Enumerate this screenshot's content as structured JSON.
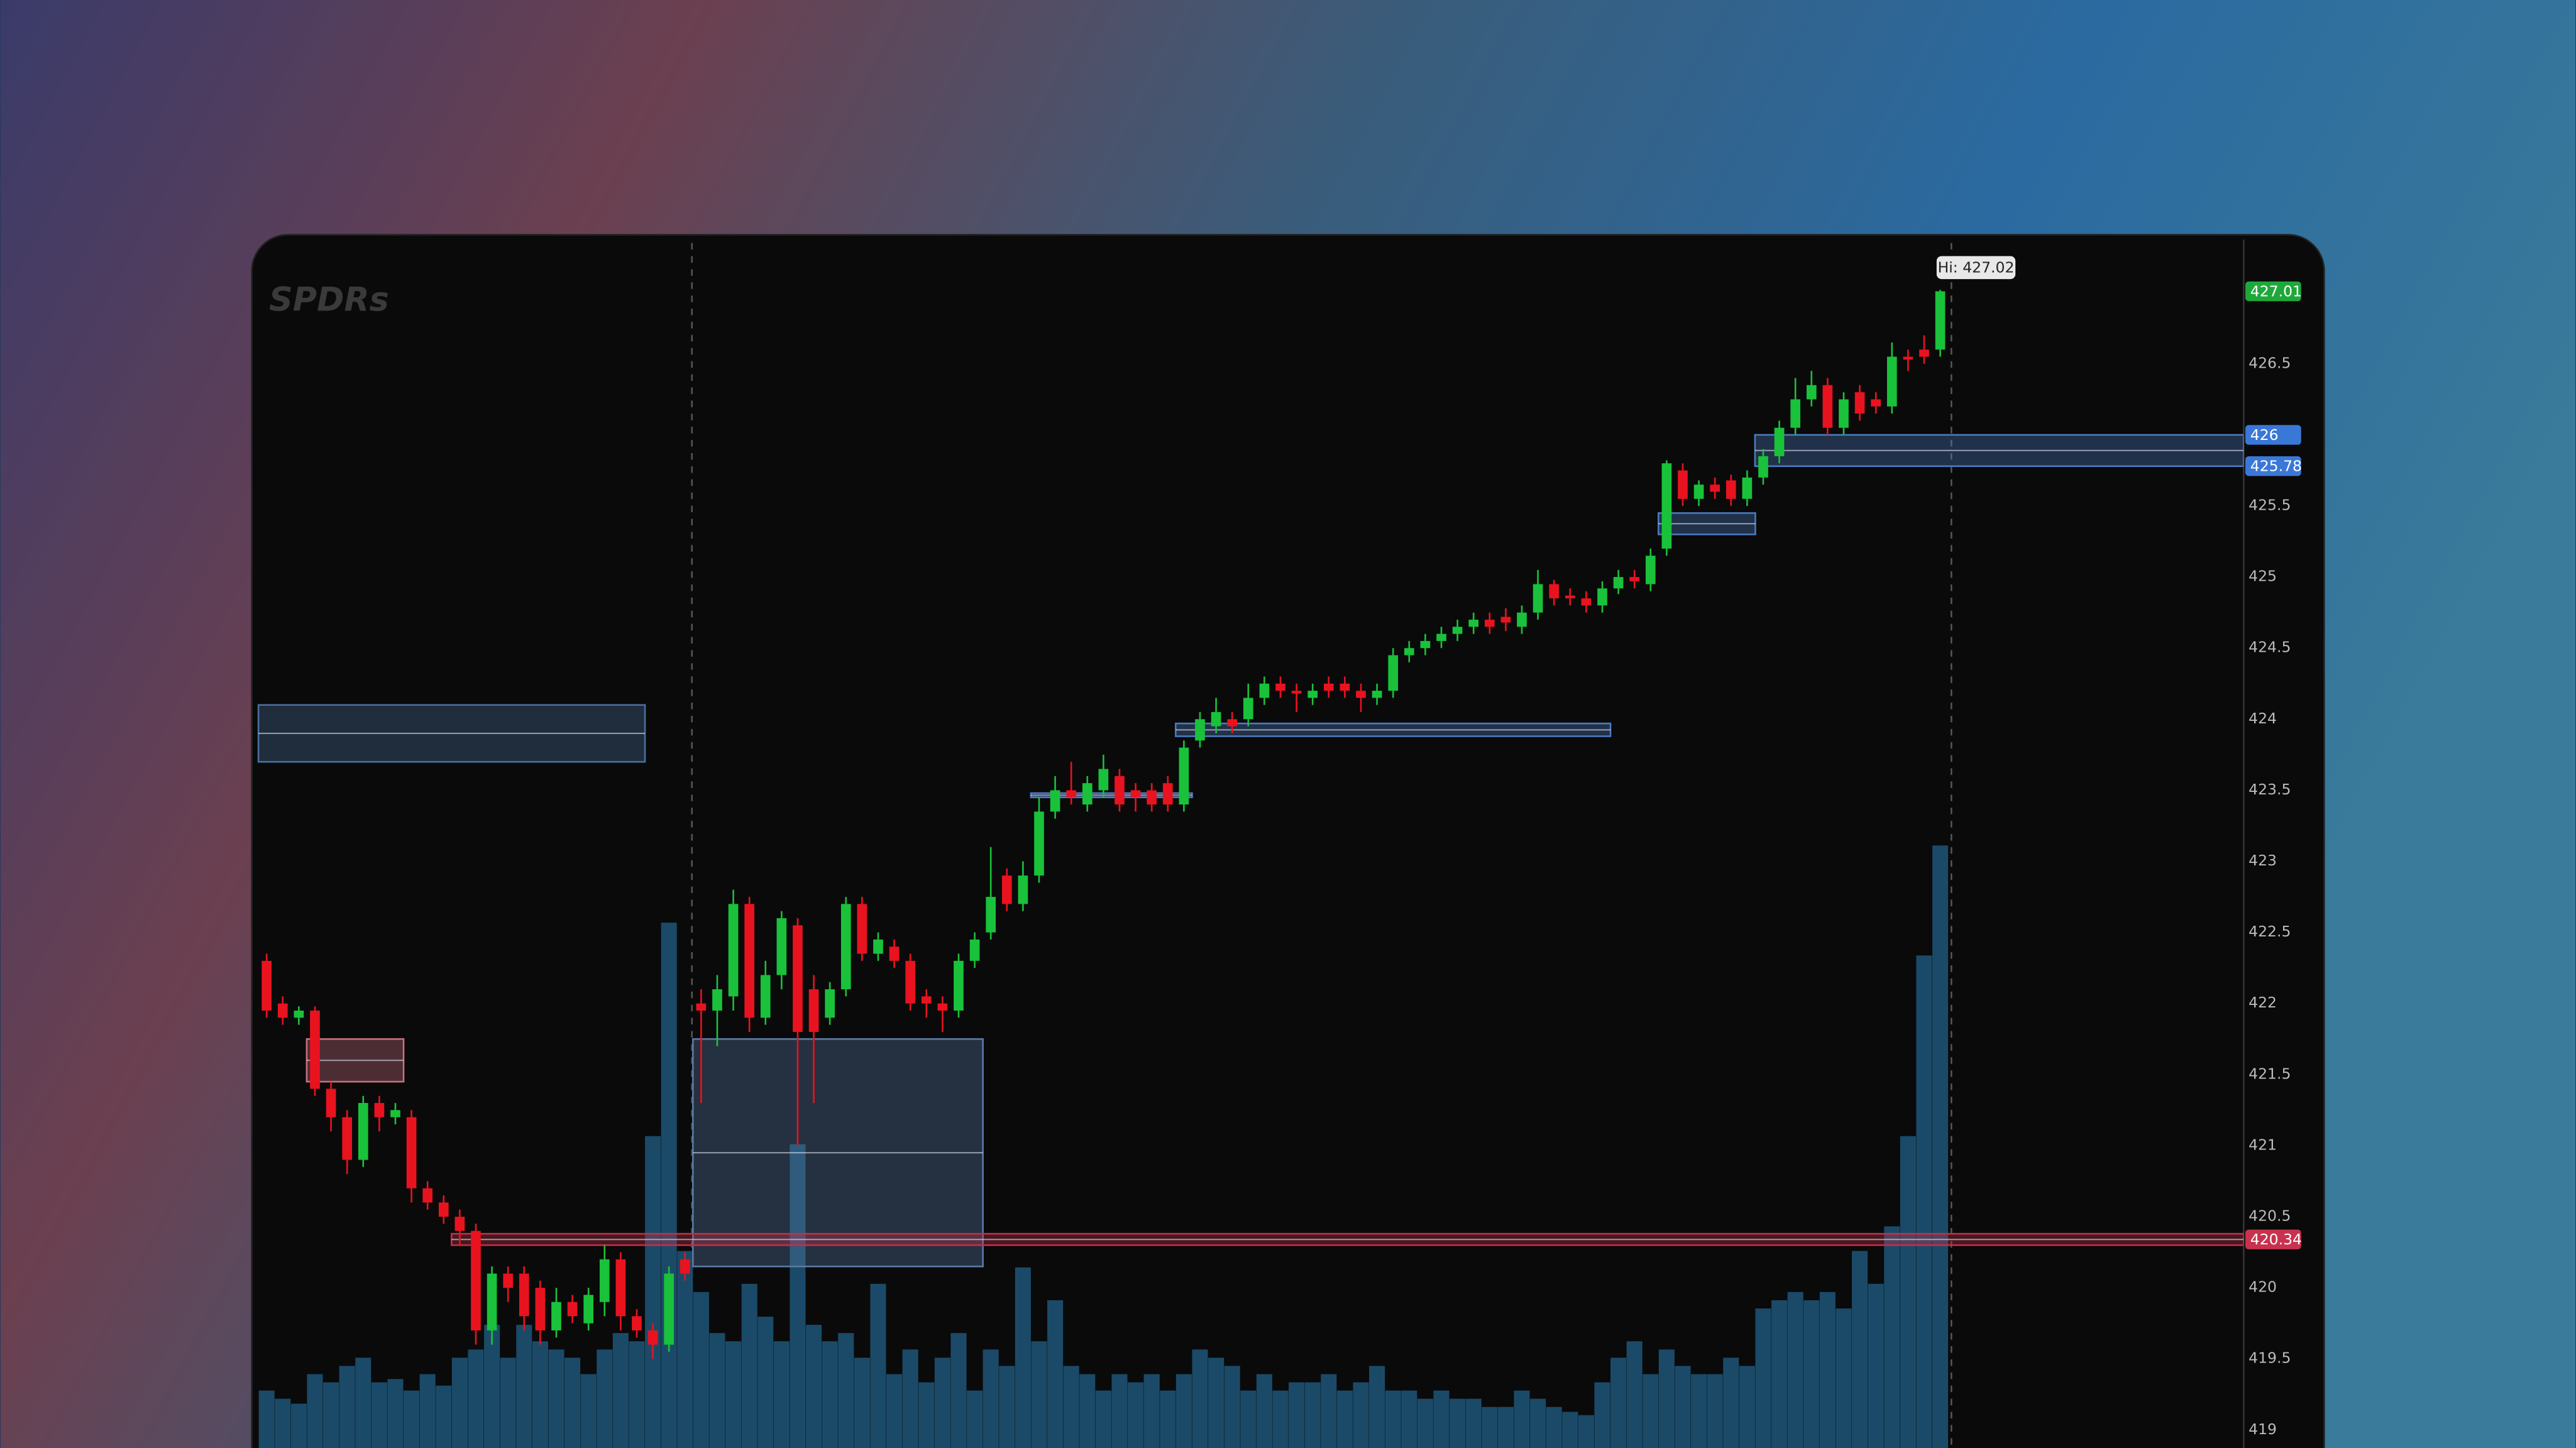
{
  "chart_data": {
    "type": "candlestick",
    "logo": "SPDRs",
    "annotation": "Hi: 427.02",
    "up_color": "#19c23a",
    "down_color": "#e8131f",
    "volume_color": "#1b4a68",
    "ylim": [
      418.873,
      427.35
    ],
    "yticks": [
      419,
      419.5,
      420,
      420.5,
      421,
      421.5,
      422,
      422.5,
      423,
      423.5,
      424,
      424.5,
      425,
      425.5,
      426.5
    ],
    "open": [
      422.3,
      422.0,
      421.9,
      421.95,
      421.4,
      421.2,
      420.9,
      421.3,
      421.2,
      421.2,
      420.7,
      420.6,
      420.5,
      420.4,
      419.7,
      420.1,
      420.1,
      420.0,
      419.7,
      419.9,
      419.75,
      419.9,
      420.2,
      419.8,
      419.7,
      419.6,
      420.2,
      422.0,
      421.95,
      422.05,
      422.7,
      421.9,
      422.2,
      422.55,
      422.1,
      421.9,
      422.1,
      422.7,
      422.35,
      422.4,
      422.3,
      422.05,
      422.0,
      421.95,
      422.3,
      422.5,
      422.9,
      422.7,
      422.9,
      423.35,
      423.5,
      423.4,
      423.5,
      423.6,
      423.5,
      423.5,
      423.55,
      423.4,
      423.85,
      423.95,
      424.0,
      424.0,
      424.15,
      424.25,
      424.2,
      424.15,
      424.25,
      424.25,
      424.2,
      424.15,
      424.2,
      424.45,
      424.5,
      424.55,
      424.6,
      424.65,
      424.7,
      424.72,
      424.65,
      424.75,
      424.95,
      424.87,
      424.85,
      424.8,
      424.92,
      425.0,
      424.95,
      425.2,
      425.75,
      425.55,
      425.65,
      425.68,
      425.55,
      425.7,
      425.85,
      426.05,
      426.25,
      426.35,
      426.05,
      426.3,
      426.25,
      426.2,
      426.55,
      426.6,
      426.6
    ],
    "high": [
      422.35,
      422.05,
      421.98,
      421.98,
      421.45,
      421.25,
      421.35,
      421.35,
      421.3,
      421.25,
      420.75,
      420.65,
      420.55,
      420.45,
      420.15,
      420.15,
      420.15,
      420.05,
      420.0,
      419.95,
      420.0,
      420.3,
      420.25,
      419.85,
      419.75,
      420.15,
      420.25,
      422.1,
      422.2,
      422.8,
      422.75,
      422.3,
      422.65,
      422.6,
      422.2,
      422.15,
      422.75,
      422.75,
      422.5,
      422.45,
      422.35,
      422.1,
      422.05,
      422.35,
      422.5,
      423.1,
      422.95,
      423.0,
      423.45,
      423.6,
      423.7,
      423.6,
      423.75,
      423.65,
      423.55,
      423.55,
      423.6,
      423.85,
      424.05,
      424.15,
      424.05,
      424.25,
      424.3,
      424.3,
      424.25,
      424.25,
      424.3,
      424.3,
      424.25,
      424.25,
      424.5,
      424.55,
      424.6,
      424.65,
      424.7,
      424.75,
      424.75,
      424.78,
      424.8,
      425.05,
      424.98,
      424.92,
      424.9,
      424.97,
      425.05,
      425.05,
      425.2,
      425.82,
      425.8,
      425.68,
      425.7,
      425.72,
      425.75,
      425.9,
      426.1,
      426.4,
      426.45,
      426.4,
      426.3,
      426.35,
      426.3,
      426.65,
      426.6,
      426.7,
      427.02
    ],
    "low": [
      421.9,
      421.85,
      421.85,
      421.35,
      421.1,
      420.8,
      420.85,
      421.1,
      421.15,
      420.6,
      420.55,
      420.45,
      420.3,
      419.6,
      419.6,
      419.9,
      419.7,
      419.6,
      419.65,
      419.75,
      419.7,
      419.8,
      419.7,
      419.65,
      419.5,
      419.55,
      420.05,
      421.3,
      421.7,
      421.95,
      421.8,
      421.85,
      422.1,
      421.0,
      421.3,
      421.85,
      422.05,
      422.3,
      422.3,
      422.25,
      421.95,
      421.9,
      421.8,
      421.9,
      422.25,
      422.45,
      422.65,
      422.65,
      422.85,
      423.3,
      423.4,
      423.35,
      423.45,
      423.35,
      423.35,
      423.35,
      423.35,
      423.35,
      423.8,
      423.9,
      423.9,
      423.95,
      424.1,
      424.15,
      424.05,
      424.1,
      424.15,
      424.15,
      424.05,
      424.1,
      424.15,
      424.4,
      424.45,
      424.5,
      424.55,
      424.6,
      424.6,
      424.62,
      424.6,
      424.7,
      424.8,
      424.8,
      424.75,
      424.75,
      424.88,
      424.92,
      424.9,
      425.15,
      425.5,
      425.5,
      425.55,
      425.5,
      425.5,
      425.65,
      425.8,
      426.0,
      426.2,
      426.0,
      426.0,
      426.1,
      426.15,
      426.15,
      426.45,
      426.5,
      426.55
    ],
    "close": [
      421.95,
      421.9,
      421.95,
      421.4,
      421.2,
      420.9,
      421.3,
      421.2,
      421.25,
      420.7,
      420.6,
      420.5,
      420.4,
      419.7,
      420.1,
      420.0,
      419.8,
      419.7,
      419.9,
      419.8,
      419.95,
      420.2,
      419.8,
      419.7,
      419.6,
      420.1,
      420.1,
      421.95,
      422.1,
      422.7,
      421.9,
      422.2,
      422.6,
      421.8,
      421.8,
      422.1,
      422.7,
      422.35,
      422.45,
      422.3,
      422.0,
      422.0,
      421.95,
      422.3,
      422.45,
      422.75,
      422.7,
      422.9,
      423.35,
      423.5,
      423.45,
      423.55,
      423.65,
      423.4,
      423.45,
      423.4,
      423.4,
      423.8,
      424.0,
      424.05,
      423.95,
      424.15,
      424.25,
      424.2,
      424.18,
      424.2,
      424.2,
      424.2,
      424.15,
      424.2,
      424.45,
      424.5,
      424.55,
      424.6,
      424.65,
      424.7,
      424.65,
      424.68,
      424.75,
      424.95,
      424.85,
      424.85,
      424.8,
      424.92,
      425.0,
      424.97,
      425.15,
      425.8,
      425.55,
      425.65,
      425.6,
      425.55,
      425.7,
      425.85,
      426.05,
      426.25,
      426.35,
      426.05,
      426.25,
      426.15,
      426.2,
      426.55,
      426.53,
      426.55,
      427.01
    ],
    "volume": [
      35,
      30,
      27,
      45,
      40,
      50,
      55,
      40,
      42,
      35,
      45,
      38,
      55,
      60,
      75,
      55,
      75,
      65,
      60,
      55,
      45,
      60,
      70,
      65,
      190,
      320,
      120,
      95,
      70,
      65,
      100,
      80,
      65,
      185,
      75,
      65,
      70,
      55,
      100,
      45,
      60,
      40,
      55,
      70,
      35,
      60,
      50,
      110,
      65,
      90,
      50,
      45,
      35,
      45,
      40,
      45,
      35,
      45,
      60,
      55,
      50,
      35,
      45,
      35,
      40,
      40,
      45,
      35,
      40,
      50,
      35,
      35,
      30,
      35,
      30,
      30,
      25,
      25,
      35,
      30,
      25,
      22,
      20,
      40,
      55,
      65,
      45,
      60,
      50,
      45,
      45,
      55,
      50,
      85,
      90,
      95,
      90,
      95,
      85,
      120,
      100,
      135,
      190,
      300,
      367
    ],
    "zones": [
      {
        "start": 0,
        "end": 23,
        "low": 423.7,
        "high": 424.1,
        "color": "#4a6f9e"
      },
      {
        "start": 3,
        "end": 8,
        "low": 421.45,
        "high": 421.75,
        "color": "#c77080"
      },
      {
        "start": 27,
        "end": 44,
        "low": 420.15,
        "high": 421.75,
        "color": "#5a7aa6"
      },
      {
        "start": 48,
        "end": 57,
        "low": 423.45,
        "high": 423.48,
        "color": "#4a7ac0"
      },
      {
        "start": 57,
        "end": 83,
        "low": 423.88,
        "high": 423.97,
        "color": "#4a7ac0"
      },
      {
        "start": 87,
        "end": 92,
        "low": 425.3,
        "high": 425.45,
        "color": "#4a7ac0"
      },
      {
        "start": 12,
        "end": 124,
        "low": 420.3,
        "high": 420.38,
        "color": "#c0304a"
      },
      {
        "start": 93,
        "end": 124,
        "low": 425.78,
        "high": 426.0,
        "color": "#4a7ac0"
      }
    ],
    "price_tags": [
      {
        "value": 427.01,
        "color": "#1fa83a"
      },
      {
        "value": 426,
        "color": "#3a78d8"
      },
      {
        "value": 425.78,
        "color": "#3a78d8"
      },
      {
        "value": 420.34,
        "color": "#c8324e"
      }
    ]
  }
}
